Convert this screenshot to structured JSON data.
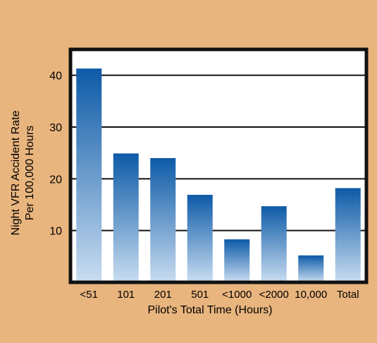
{
  "chart_data": {
    "type": "bar",
    "title": "",
    "xlabel": "Pilot's Total Time (Hours)",
    "ylabel_lines": [
      "Night VFR Accident Rate",
      "Per 100,000 Hours"
    ],
    "categories": [
      "<51",
      "101",
      "201",
      "501",
      "<1000",
      "<2000",
      "10,000",
      "Total"
    ],
    "values": [
      41.3,
      24.9,
      24.0,
      16.9,
      8.3,
      14.7,
      5.2,
      18.2
    ],
    "yticks": [
      10,
      20,
      30,
      40
    ],
    "ylim": [
      0,
      45
    ],
    "grid": true,
    "legend": "none",
    "colors": {
      "background": "#e9b57e",
      "plot_bg": "#ffffff",
      "bar_top": "#0d5aa7",
      "bar_bottom": "#c9ddf1",
      "frame": "#111111",
      "grid": "#111111"
    }
  }
}
